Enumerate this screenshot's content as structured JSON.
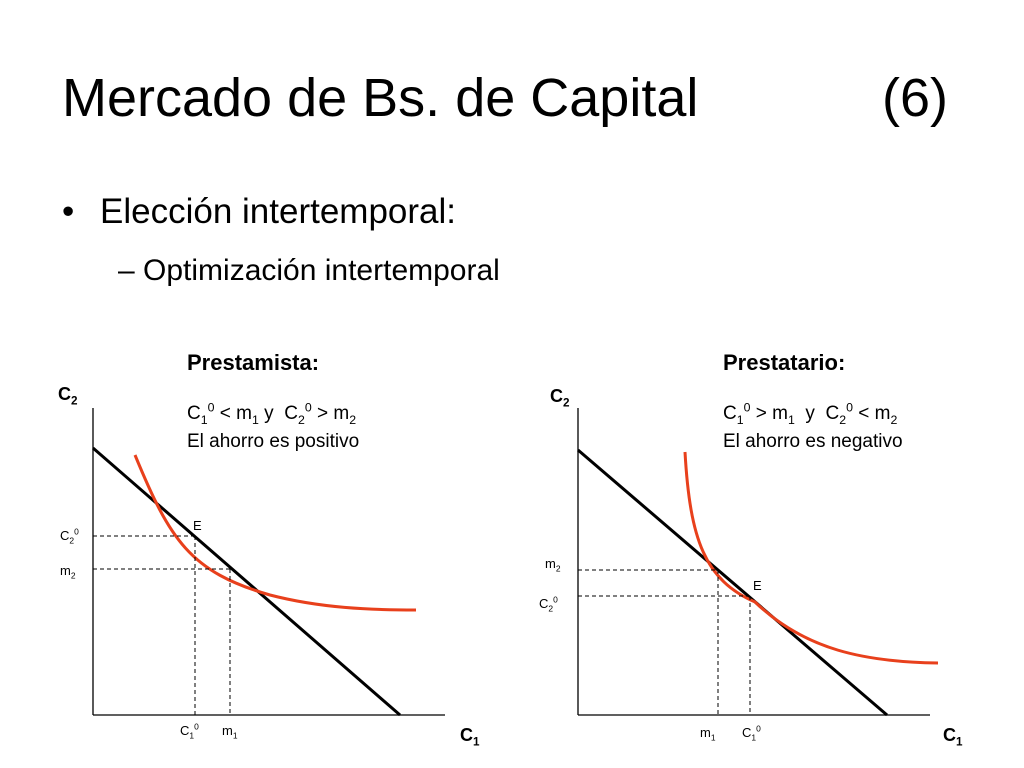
{
  "slide": {
    "title": "Mercado de Bs. de Capital",
    "title_number": "(6)",
    "bullet": "Elección intertemporal:",
    "sub_bullet": "– Optimización intertemporal"
  },
  "panels": [
    {
      "title": "Prestamista:",
      "condition": {
        "a": "C",
        "a_sub": "1",
        "a_sup": "0",
        "op1": "<",
        "b": "m",
        "b_sub": "1",
        "conj": "y",
        "c": "C",
        "c_sub": "2",
        "c_sup": "0",
        "op2": ">",
        "d": "m",
        "d_sub": "2"
      },
      "savings": "El ahorro es positivo",
      "y_axis": {
        "main": "C",
        "sub": "2"
      },
      "x_axis": {
        "main": "C",
        "sub": "1"
      },
      "equilibrium_label": "E",
      "y_ticks": [
        {
          "main": "C",
          "sub": "2",
          "sup": "0"
        },
        {
          "main": "m",
          "sub": "2",
          "sup": ""
        }
      ],
      "x_ticks": [
        {
          "main": "C",
          "sub": "1",
          "sup": "0"
        },
        {
          "main": "m",
          "sub": "1",
          "sup": ""
        }
      ]
    },
    {
      "title": "Prestatario:",
      "condition": {
        "a": "C",
        "a_sub": "1",
        "a_sup": "0",
        "op1": ">",
        "b": "m",
        "b_sub": "1",
        "conj": "y",
        "c": "C",
        "c_sub": "2",
        "c_sup": "0",
        "op2": "<",
        "d": "m",
        "d_sub": "2"
      },
      "savings": "El ahorro es negativo",
      "y_axis": {
        "main": "C",
        "sub": "2"
      },
      "x_axis": {
        "main": "C",
        "sub": "1"
      },
      "equilibrium_label": "E",
      "y_ticks": [
        {
          "main": "m",
          "sub": "2",
          "sup": ""
        },
        {
          "main": "C",
          "sub": "2",
          "sup": "0"
        }
      ],
      "x_ticks": [
        {
          "main": "m",
          "sub": "1",
          "sup": ""
        },
        {
          "main": "C",
          "sub": "1",
          "sup": "0"
        }
      ]
    }
  ],
  "colors": {
    "budget_line": "#000000",
    "indifference_curve": "#e8401c",
    "guide": "#000000"
  }
}
